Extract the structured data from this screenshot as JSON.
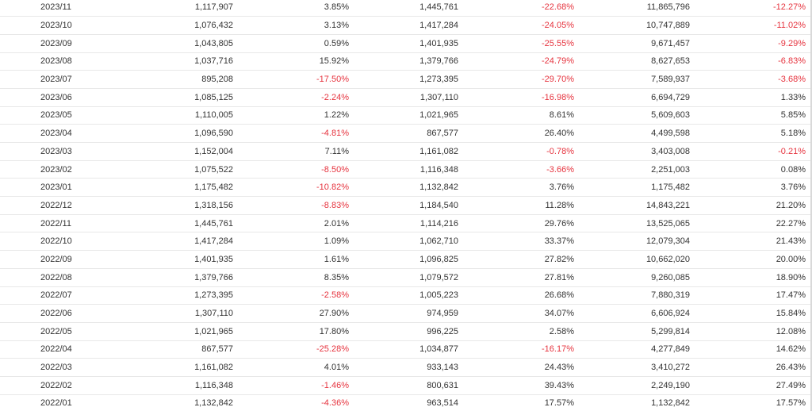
{
  "colors": {
    "negative": "#e6343f",
    "text": "#333333",
    "row_border": "#e8e8e8"
  },
  "rows": [
    [
      "2023/11",
      "1,117,907",
      "3.85%",
      "1,445,761",
      "-22.68%",
      "11,865,796",
      "-12.27%"
    ],
    [
      "2023/10",
      "1,076,432",
      "3.13%",
      "1,417,284",
      "-24.05%",
      "10,747,889",
      "-11.02%"
    ],
    [
      "2023/09",
      "1,043,805",
      "0.59%",
      "1,401,935",
      "-25.55%",
      "9,671,457",
      "-9.29%"
    ],
    [
      "2023/08",
      "1,037,716",
      "15.92%",
      "1,379,766",
      "-24.79%",
      "8,627,653",
      "-6.83%"
    ],
    [
      "2023/07",
      "895,208",
      "-17.50%",
      "1,273,395",
      "-29.70%",
      "7,589,937",
      "-3.68%"
    ],
    [
      "2023/06",
      "1,085,125",
      "-2.24%",
      "1,307,110",
      "-16.98%",
      "6,694,729",
      "1.33%"
    ],
    [
      "2023/05",
      "1,110,005",
      "1.22%",
      "1,021,965",
      "8.61%",
      "5,609,603",
      "5.85%"
    ],
    [
      "2023/04",
      "1,096,590",
      "-4.81%",
      "867,577",
      "26.40%",
      "4,499,598",
      "5.18%"
    ],
    [
      "2023/03",
      "1,152,004",
      "7.11%",
      "1,161,082",
      "-0.78%",
      "3,403,008",
      "-0.21%"
    ],
    [
      "2023/02",
      "1,075,522",
      "-8.50%",
      "1,116,348",
      "-3.66%",
      "2,251,003",
      "0.08%"
    ],
    [
      "2023/01",
      "1,175,482",
      "-10.82%",
      "1,132,842",
      "3.76%",
      "1,175,482",
      "3.76%"
    ],
    [
      "2022/12",
      "1,318,156",
      "-8.83%",
      "1,184,540",
      "11.28%",
      "14,843,221",
      "21.20%"
    ],
    [
      "2022/11",
      "1,445,761",
      "2.01%",
      "1,114,216",
      "29.76%",
      "13,525,065",
      "22.27%"
    ],
    [
      "2022/10",
      "1,417,284",
      "1.09%",
      "1,062,710",
      "33.37%",
      "12,079,304",
      "21.43%"
    ],
    [
      "2022/09",
      "1,401,935",
      "1.61%",
      "1,096,825",
      "27.82%",
      "10,662,020",
      "20.00%"
    ],
    [
      "2022/08",
      "1,379,766",
      "8.35%",
      "1,079,572",
      "27.81%",
      "9,260,085",
      "18.90%"
    ],
    [
      "2022/07",
      "1,273,395",
      "-2.58%",
      "1,005,223",
      "26.68%",
      "7,880,319",
      "17.47%"
    ],
    [
      "2022/06",
      "1,307,110",
      "27.90%",
      "974,959",
      "34.07%",
      "6,606,924",
      "15.84%"
    ],
    [
      "2022/05",
      "1,021,965",
      "17.80%",
      "996,225",
      "2.58%",
      "5,299,814",
      "12.08%"
    ],
    [
      "2022/04",
      "867,577",
      "-25.28%",
      "1,034,877",
      "-16.17%",
      "4,277,849",
      "14.62%"
    ],
    [
      "2022/03",
      "1,161,082",
      "4.01%",
      "933,143",
      "24.43%",
      "3,410,272",
      "26.43%"
    ],
    [
      "2022/02",
      "1,116,348",
      "-1.46%",
      "800,631",
      "39.43%",
      "2,249,190",
      "27.49%"
    ],
    [
      "2022/01",
      "1,132,842",
      "-4.36%",
      "963,514",
      "17.57%",
      "1,132,842",
      "17.57%"
    ]
  ]
}
